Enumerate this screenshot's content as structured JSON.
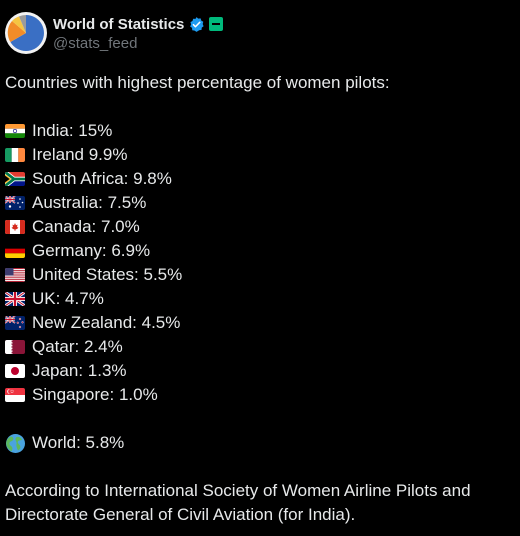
{
  "account": {
    "display_name": "World of Statistics",
    "handle": "@stats_feed",
    "avatar_icon": "pie-chart-avatar",
    "verified_icon": "verified-badge-icon",
    "affiliation_icon": "affiliation-badge-icon"
  },
  "post": {
    "intro": "Countries with highest percentage of women pilots:",
    "countries": [
      {
        "flag": "india-flag-icon",
        "label": "India: 15%"
      },
      {
        "flag": "ireland-flag-icon",
        "label": "Ireland 9.9%"
      },
      {
        "flag": "south-africa-flag-icon",
        "label": "South Africa: 9.8%"
      },
      {
        "flag": "australia-flag-icon",
        "label": "Australia: 7.5%"
      },
      {
        "flag": "canada-flag-icon",
        "label": "Canada: 7.0%"
      },
      {
        "flag": "germany-flag-icon",
        "label": "Germany: 6.9%"
      },
      {
        "flag": "united-states-flag-icon",
        "label": "United States: 5.5%"
      },
      {
        "flag": "uk-flag-icon",
        "label": "UK: 4.7%"
      },
      {
        "flag": "new-zealand-flag-icon",
        "label": "New Zealand: 4.5%"
      },
      {
        "flag": "qatar-flag-icon",
        "label": "Qatar: 2.4%"
      },
      {
        "flag": "japan-flag-icon",
        "label": "Japan: 1.3%"
      },
      {
        "flag": "singapore-flag-icon",
        "label": "Singapore: 1.0%"
      }
    ],
    "world": {
      "icon": "globe-icon",
      "label": "World: 5.8%"
    },
    "source_line1": "According to International Society of Women Airline Pilots and",
    "source_line2": "Directorate General of Civil Aviation (for India)."
  },
  "colors": {
    "background": "#000000",
    "text": "#e7e9ea",
    "muted": "#71767b",
    "verified": "#1d9bf0",
    "affiliation": "#00ba7c"
  }
}
